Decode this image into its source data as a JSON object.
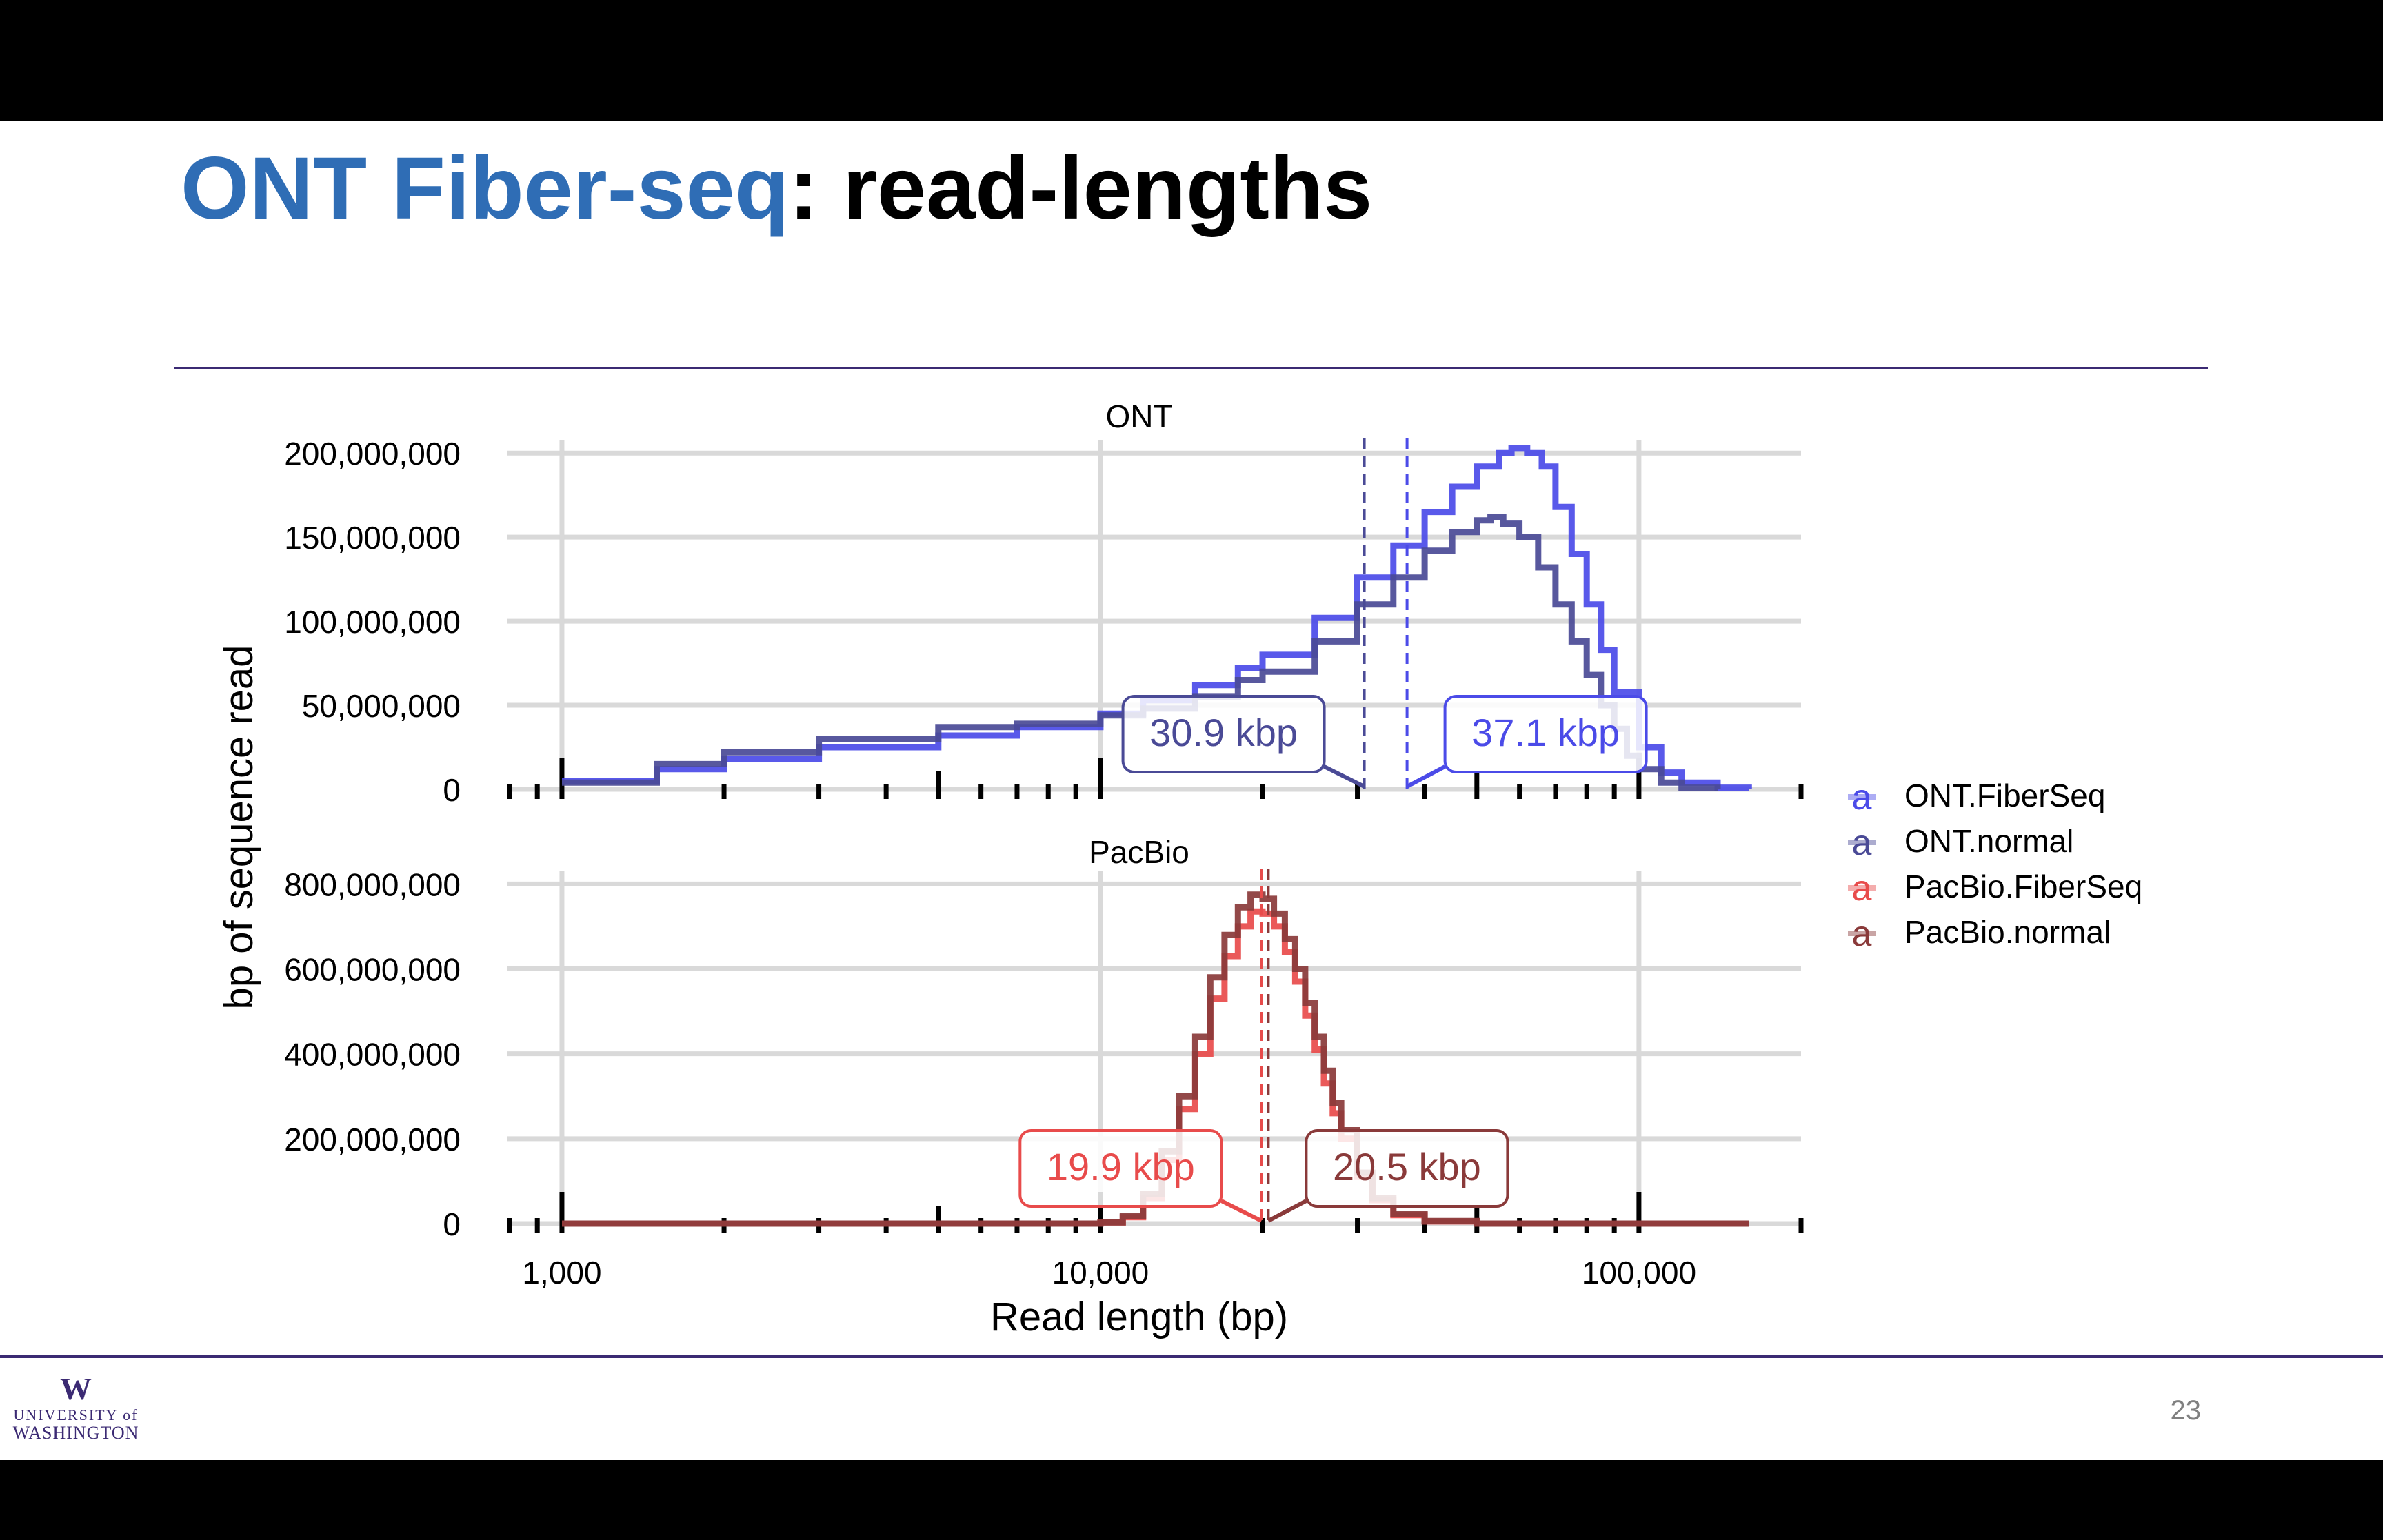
{
  "slide": {
    "title_highlight": "ONT Fiber-seq",
    "title_rest": ": read-lengths",
    "slide_number": "23",
    "logo": {
      "mark": "W",
      "line1": "UNIVERSITY of",
      "line2": "WASHINGTON"
    }
  },
  "colors": {
    "title_blue": "#2f6db5",
    "rule_purple": "#3b2a73",
    "ont_fiberseq": "#4b4be8",
    "ont_normal": "#4a4a96",
    "pacbio_fiberseq": "#e84b4b",
    "pacbio_normal": "#8a3a3a"
  },
  "chart_data": {
    "type": "line",
    "xlabel": "Read length (bp)",
    "ylabel": "bp of sequence read",
    "xscale": "log10",
    "xlim": [
      790,
      200000
    ],
    "x_ticks": [
      1000,
      10000,
      100000
    ],
    "x_tick_labels": [
      "1,000",
      "10,000",
      "100,000"
    ],
    "legend": {
      "position": "right",
      "symbol": "a",
      "entries": [
        "ONT.FiberSeq",
        "ONT.normal",
        "PacBio.FiberSeq",
        "PacBio.normal"
      ]
    },
    "panels": [
      {
        "name": "ONT",
        "ylim": [
          0,
          205000000
        ],
        "y_ticks": [
          0,
          50000000,
          100000000,
          150000000,
          200000000
        ],
        "y_tick_labels": [
          "0",
          "50,000,000",
          "100,000,000",
          "150,000,000",
          "200,000,000"
        ],
        "series": [
          {
            "name": "ONT.FiberSeq",
            "color": "#4b4be8",
            "x": [
              1000,
              1500,
              2000,
              3000,
              5000,
              7000,
              10000,
              12000,
              15000,
              18000,
              20000,
              25000,
              30000,
              35000,
              40000,
              45000,
              50000,
              55000,
              58000,
              62000,
              66000,
              70000,
              75000,
              80000,
              85000,
              90000,
              100000,
              110000,
              120000,
              140000,
              160000
            ],
            "y": [
              5000000,
              12000000,
              18000000,
              25000000,
              32000000,
              37000000,
              45000000,
              53000000,
              62000000,
              72000000,
              80000000,
              102000000,
              126000000,
              145000000,
              165000000,
              180000000,
              192000000,
              200000000,
              203000000,
              200000000,
              192000000,
              168000000,
              140000000,
              110000000,
              83000000,
              58000000,
              25000000,
              10000000,
              4000000,
              1000000,
              0
            ]
          },
          {
            "name": "ONT.normal",
            "color": "#4a4a96",
            "x": [
              1000,
              1500,
              2000,
              3000,
              5000,
              7000,
              10000,
              12000,
              15000,
              18000,
              20000,
              25000,
              30000,
              35000,
              40000,
              45000,
              50000,
              53000,
              56000,
              60000,
              65000,
              70000,
              75000,
              80000,
              85000,
              90000,
              95000,
              100000,
              110000,
              120000,
              140000
            ],
            "y": [
              4000000,
              15000000,
              22000000,
              30000000,
              37000000,
              39000000,
              44000000,
              48000000,
              55000000,
              65000000,
              70000000,
              88000000,
              110000000,
              126000000,
              142000000,
              153000000,
              160000000,
              162000000,
              158000000,
              150000000,
              132000000,
              110000000,
              88000000,
              68000000,
              50000000,
              36000000,
              20000000,
              12000000,
              4000000,
              1000000,
              0
            ]
          }
        ],
        "medians": [
          {
            "series": "ONT.normal",
            "x": 30900,
            "label": "30.9 kbp",
            "side": "left"
          },
          {
            "series": "ONT.FiberSeq",
            "x": 37100,
            "label": "37.1 kbp",
            "side": "right"
          }
        ]
      },
      {
        "name": "PacBio",
        "ylim": [
          0,
          820000000
        ],
        "y_ticks": [
          0,
          200000000,
          400000000,
          600000000,
          800000000
        ],
        "y_tick_labels": [
          "0",
          "200,000,000",
          "400,000,000",
          "600,000,000",
          "800,000,000"
        ],
        "series": [
          {
            "name": "PacBio.FiberSeq",
            "color": "#e84b4b",
            "x": [
              1000,
              5000,
              10000,
              11000,
              12000,
              13000,
              14000,
              15000,
              16000,
              17000,
              18000,
              19000,
              20000,
              21000,
              22000,
              23000,
              24000,
              25000,
              26000,
              27000,
              28000,
              30000,
              32000,
              35000,
              40000,
              50000,
              160000
            ],
            "y": [
              0,
              0,
              3000000,
              15000000,
              60000000,
              150000000,
              270000000,
              400000000,
              530000000,
              630000000,
              700000000,
              735000000,
              730000000,
              700000000,
              640000000,
              570000000,
              490000000,
              410000000,
              330000000,
              260000000,
              200000000,
              110000000,
              55000000,
              20000000,
              5000000,
              0,
              0
            ]
          },
          {
            "name": "PacBio.normal",
            "color": "#8a3a3a",
            "x": [
              1000,
              5000,
              10000,
              11000,
              12000,
              13000,
              14000,
              15000,
              16000,
              17000,
              18000,
              19000,
              20000,
              21000,
              22000,
              23000,
              24000,
              25000,
              26000,
              27000,
              28000,
              30000,
              32000,
              35000,
              40000,
              50000,
              160000
            ],
            "y": [
              0,
              0,
              3000000,
              18000000,
              70000000,
              170000000,
              300000000,
              440000000,
              580000000,
              680000000,
              745000000,
              775000000,
              765000000,
              730000000,
              670000000,
              600000000,
              520000000,
              440000000,
              360000000,
              285000000,
              220000000,
              120000000,
              60000000,
              22000000,
              6000000,
              0,
              0
            ]
          }
        ],
        "medians": [
          {
            "series": "PacBio.FiberSeq",
            "x": 19900,
            "label": "19.9 kbp",
            "side": "left"
          },
          {
            "series": "PacBio.normal",
            "x": 20500,
            "label": "20.5 kbp",
            "side": "right"
          }
        ]
      }
    ]
  }
}
